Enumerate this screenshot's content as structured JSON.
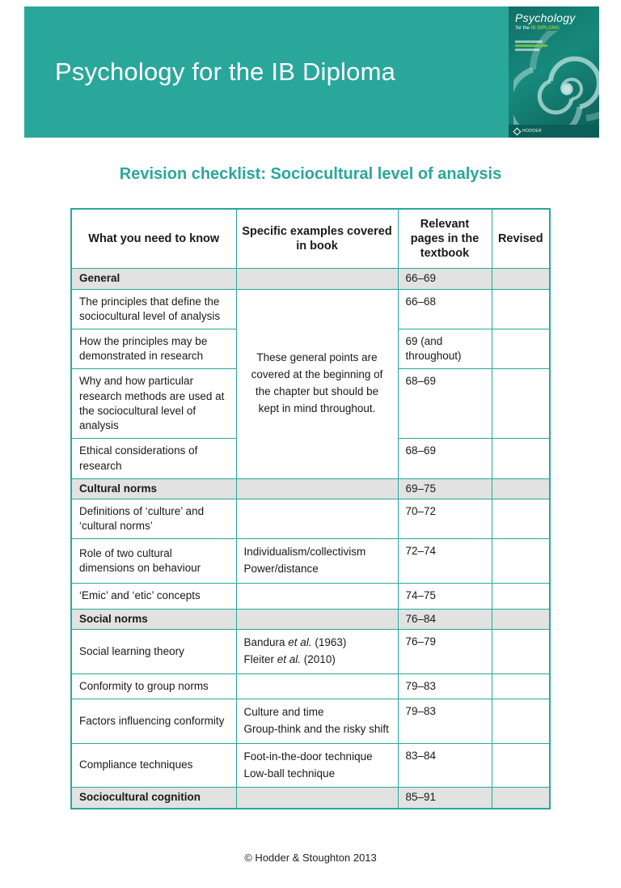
{
  "page": {
    "header": {
      "title": "Psychology for the IB Diploma",
      "banner_color": "#2aa79b",
      "book_cover": {
        "title": "Psychology",
        "subtitle_prefix": "for the ",
        "subtitle_highlight": "IB DIPLOMA",
        "publisher": "HODDER"
      }
    },
    "heading": "Revision checklist: Sociocultural level of analysis",
    "footer": "© Hodder & Stoughton 2013"
  },
  "table": {
    "columns": [
      "What you need to know",
      "Specific examples covered in book",
      "Relevant pages in the textbook",
      "Revised"
    ],
    "rows": [
      {
        "type": "section",
        "know": "General",
        "examples": null,
        "pages": "66–69"
      },
      {
        "type": "item",
        "know": "The principles that define the sociocultural level of analysis",
        "examples": {
          "rowspan": 4,
          "lines": [
            [
              {
                "t": "These general points are covered at the beginning of the chapter but should be kept in mind throughout."
              }
            ]
          ]
        },
        "pages": "66–68"
      },
      {
        "type": "item",
        "know": "How the principles may be demonstrated in research",
        "examples": "skip",
        "pages": "69 (and throughout)"
      },
      {
        "type": "item",
        "know": "Why and how particular research methods are used at the sociocultural level of analysis",
        "examples": "skip",
        "pages": "68–69"
      },
      {
        "type": "item",
        "know": "Ethical considerations of research",
        "examples": "skip",
        "pages": "68–69"
      },
      {
        "type": "section",
        "know": "Cultural norms",
        "examples": null,
        "pages": "69–75"
      },
      {
        "type": "item",
        "know": "Definitions of ‘culture’ and ‘cultural norms’",
        "examples": null,
        "pages": "70–72"
      },
      {
        "type": "item",
        "know": "Role of two cultural dimensions on behaviour",
        "examples": {
          "lines": [
            [
              {
                "t": "Individualism/collectivism"
              }
            ],
            [
              {
                "t": "Power/distance"
              }
            ]
          ]
        },
        "pages": "72–74"
      },
      {
        "type": "item",
        "know": "‘Emic’ and ‘etic’ concepts",
        "examples": null,
        "pages": "74–75"
      },
      {
        "type": "section",
        "know": "Social norms",
        "examples": null,
        "pages": "76–84"
      },
      {
        "type": "item",
        "know": "Social learning theory",
        "examples": {
          "lines": [
            [
              {
                "t": "Bandura "
              },
              {
                "t": "et al.",
                "i": true
              },
              {
                "t": " (1963)"
              }
            ],
            [
              {
                "t": "Fleiter "
              },
              {
                "t": "et al.",
                "i": true
              },
              {
                "t": " (2010)"
              }
            ]
          ]
        },
        "pages": "76–79"
      },
      {
        "type": "item",
        "know": "Conformity to group norms",
        "examples": null,
        "pages": "79–83"
      },
      {
        "type": "item",
        "know": "Factors influencing conformity",
        "examples": {
          "lines": [
            [
              {
                "t": "Culture and time"
              }
            ],
            [
              {
                "t": "Group-think and the risky shift"
              }
            ]
          ]
        },
        "pages": "79–83"
      },
      {
        "type": "item",
        "know": "Compliance techniques",
        "examples": {
          "lines": [
            [
              {
                "t": "Foot-in-the-door technique"
              }
            ],
            [
              {
                "t": "Low-ball technique"
              }
            ]
          ]
        },
        "pages": "83–84"
      },
      {
        "type": "section",
        "know": "Sociocultural cognition",
        "examples": null,
        "pages": "85–91"
      }
    ]
  }
}
